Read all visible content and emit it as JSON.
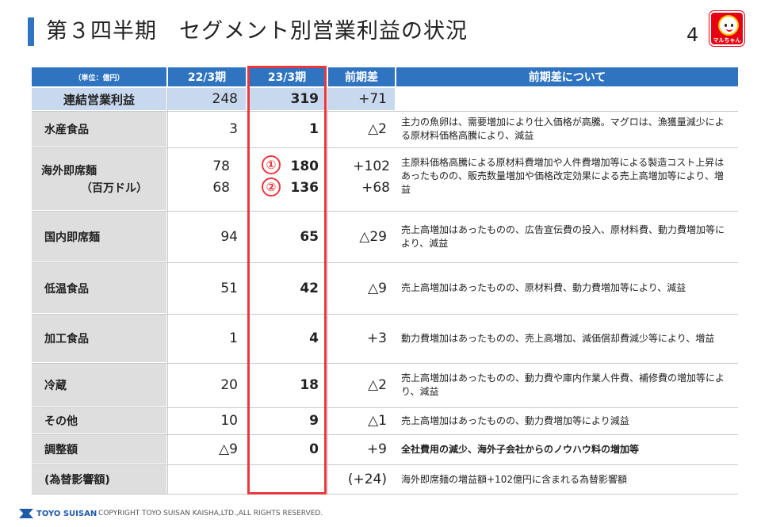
{
  "header": {
    "title": "第３四半期　セグメント別営業利益の状況",
    "page_number": "4",
    "logo_text": "マルちゃん"
  },
  "table": {
    "columns": {
      "unit": "（単位：億円）",
      "prev": "22/3期",
      "curr": "23/3期",
      "diff": "前期差",
      "note": "前期差について"
    },
    "rows": [
      {
        "label": "連結営業利益",
        "prev": "248",
        "curr": "319",
        "diff": "+71",
        "note": ""
      },
      {
        "label": "水産食品",
        "prev": "3",
        "curr": "1",
        "diff": "△2",
        "note": "主力の魚卵は、需要増加により仕入価格が高騰。マグロは、漁獲量減少による原材料価格高騰により、減益"
      },
      {
        "label": "海外即席麺",
        "sub_label": "（百万ドル）",
        "prev": "78",
        "prev2": "68",
        "curr": "180",
        "curr2": "136",
        "marker1": "①",
        "marker2": "②",
        "diff": "+102",
        "diff2": "+68",
        "note": "主原料価格高騰による原材料費増加や人件費増加等による製造コスト上昇はあったものの、販売数量増加や価格改定効果による売上高増加等により、増益"
      },
      {
        "label": "国内即席麺",
        "prev": "94",
        "curr": "65",
        "diff": "△29",
        "note": "売上高増加はあったものの、広告宣伝費の投入、原材料費、動力費増加等により、減益"
      },
      {
        "label": "低温食品",
        "prev": "51",
        "curr": "42",
        "diff": "△9",
        "note": "売上高増加はあったものの、原材料費、動力費増加等により、減益"
      },
      {
        "label": "加工食品",
        "prev": "1",
        "curr": "4",
        "diff": "+3",
        "note": "動力費増加はあったものの、売上高増加、減価償却費減少等により、増益"
      },
      {
        "label": "冷蔵",
        "prev": "20",
        "curr": "18",
        "diff": "△2",
        "note": "売上高増加はあったものの、動力費や庫内作業人件費、補修費の増加等により、減益"
      },
      {
        "label": "その他",
        "prev": "10",
        "curr": "9",
        "diff": "△1",
        "note": "売上高増加はあったものの、動力費増加等により減益"
      },
      {
        "label": "調整額",
        "prev": "△9",
        "curr": "0",
        "diff": "+9",
        "note": "全社費用の減少、海外子会社からのノウハウ料の増加等"
      },
      {
        "label": "(為替影響額)",
        "prev": "",
        "curr": "",
        "diff": "(+24)",
        "note": "海外即席麺の増益額+102億円に含まれる為替影響額"
      }
    ]
  },
  "footer": {
    "company": "TOYO SUISAN",
    "copyright": "COPYRIGHT TOYO SUISAN KAISHA,LTD.,ALL RIGHTS RESERVED."
  },
  "colors": {
    "header_blue": "#2e74c0",
    "highlight_red": "#e8383d",
    "label_gray": "#dedede",
    "total_row_blue": "#c8d8ee"
  }
}
